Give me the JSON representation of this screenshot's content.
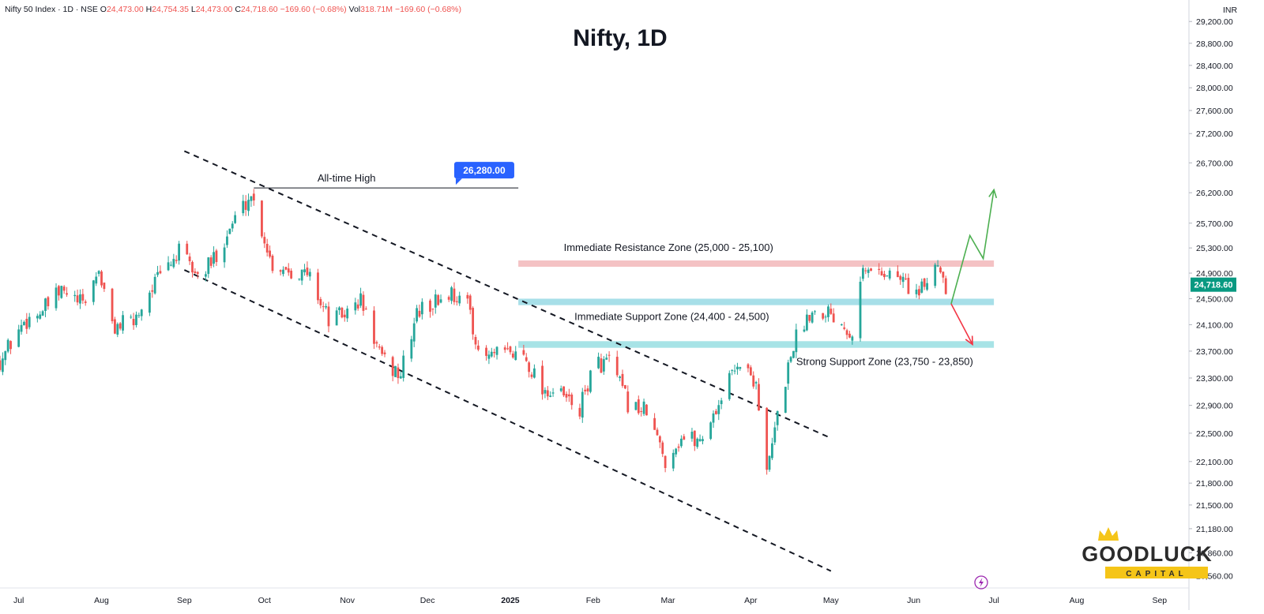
{
  "header": {
    "symbol": "Nifty 50 Index · 1D · NSE",
    "open_label": "O",
    "open": "24,473.00",
    "high_label": "H",
    "high": "24,754.35",
    "low_label": "L",
    "low": "24,473.00",
    "close_label": "C",
    "close": "24,718.60",
    "change": "−169.60 (−0.68%)",
    "vol_label": "Vol",
    "vol": "318.71M",
    "vol_change": "−169.60 (−0.68%)"
  },
  "colors": {
    "up": "#26a69a",
    "down": "#ef5350",
    "price_tag": "#089981",
    "ath_tag": "#2962ff",
    "resistance_zone": "#f4c2c4",
    "support_zone": "#a7dfe8",
    "strong_support_zone": "#a7e3e6",
    "bull_arrow": "#4caf50",
    "bear_arrow": "#f23645",
    "logo_gold": "#f5c518",
    "logo_text": "#2b2b2b",
    "bolt": "#9c27b0"
  },
  "currency": "INR",
  "current_price_tag": "24,718.60",
  "icons": {
    "bolt": "lightning-bolt-icon",
    "crown": "crown-icon"
  },
  "logo": {
    "name": "GOODLUCK",
    "sub": "CAPITAL"
  },
  "chart_data": {
    "type": "candlestick",
    "title": "Nifty, 1D",
    "y_scale": "log",
    "ylim": [
      20400,
      29600
    ],
    "y_ticks": [
      20560,
      20860,
      21180,
      21500,
      21800,
      22100,
      22500,
      22900,
      23300,
      23700,
      24100,
      24500,
      24900,
      25300,
      25700,
      26200,
      26700,
      27200,
      27600,
      28000,
      28400,
      28800,
      29200
    ],
    "y_tick_labels": [
      "20,560.00",
      "20,860.00",
      "21,180.00",
      "21,500.00",
      "21,800.00",
      "22,100.00",
      "22,500.00",
      "22,900.00",
      "23,300.00",
      "23,700.00",
      "24,100.00",
      "24,500.00",
      "24,900.00",
      "25,300.00",
      "25,700.00",
      "26,200.00",
      "26,700.00",
      "27,200.00",
      "27,600.00",
      "28,000.00",
      "28,400.00",
      "28,800.00",
      "29,200.00"
    ],
    "x_range": [
      "2024-06-24",
      "2025-09-12"
    ],
    "x_ticks": [
      {
        "date": "2024-07-01",
        "label": "Jul"
      },
      {
        "date": "2024-08-01",
        "label": "Aug"
      },
      {
        "date": "2024-09-01",
        "label": "Sep"
      },
      {
        "date": "2024-10-01",
        "label": "Oct"
      },
      {
        "date": "2024-11-01",
        "label": "Nov"
      },
      {
        "date": "2024-12-01",
        "label": "Dec"
      },
      {
        "date": "2025-01-01",
        "label": "2025"
      },
      {
        "date": "2025-02-01",
        "label": "Feb"
      },
      {
        "date": "2025-03-01",
        "label": "Mar"
      },
      {
        "date": "2025-04-01",
        "label": "Apr"
      },
      {
        "date": "2025-05-01",
        "label": "May"
      },
      {
        "date": "2025-06-01",
        "label": "Jun"
      },
      {
        "date": "2025-07-01",
        "label": "Jul"
      },
      {
        "date": "2025-08-01",
        "label": "Aug"
      },
      {
        "date": "2025-09-01",
        "label": "Sep"
      }
    ],
    "close_path": [
      [
        "2024-06-24",
        23560
      ],
      [
        "2024-07-03",
        24150
      ],
      [
        "2024-07-10",
        24320
      ],
      [
        "2024-07-17",
        24610
      ],
      [
        "2024-07-25",
        24400
      ],
      [
        "2024-07-31",
        24950
      ],
      [
        "2024-08-05",
        24060
      ],
      [
        "2024-08-13",
        24150
      ],
      [
        "2024-08-20",
        24700
      ],
      [
        "2024-08-30",
        25230
      ],
      [
        "2024-09-06",
        24850
      ],
      [
        "2024-09-11",
        25050
      ],
      [
        "2024-09-20",
        25780
      ],
      [
        "2024-09-26",
        26180
      ],
      [
        "2024-10-04",
        25020
      ],
      [
        "2024-10-10",
        24980
      ],
      [
        "2024-10-18",
        24850
      ],
      [
        "2024-10-25",
        24180
      ],
      [
        "2024-11-01",
        24280
      ],
      [
        "2024-11-06",
        24480
      ],
      [
        "2024-11-14",
        23550
      ],
      [
        "2024-11-21",
        23350
      ],
      [
        "2024-11-27",
        24280
      ],
      [
        "2024-12-04",
        24450
      ],
      [
        "2024-12-10",
        24600
      ],
      [
        "2024-12-17",
        24350
      ],
      [
        "2024-12-20",
        23600
      ],
      [
        "2024-12-30",
        23650
      ],
      [
        "2025-01-06",
        23650
      ],
      [
        "2025-01-13",
        23150
      ],
      [
        "2025-01-21",
        23020
      ],
      [
        "2025-01-27",
        22830
      ],
      [
        "2025-02-01",
        23480
      ],
      [
        "2025-02-07",
        23550
      ],
      [
        "2025-02-14",
        22930
      ],
      [
        "2025-02-21",
        22800
      ],
      [
        "2025-02-28",
        22120
      ],
      [
        "2025-03-06",
        22440
      ],
      [
        "2025-03-13",
        22400
      ],
      [
        "2025-03-19",
        22850
      ],
      [
        "2025-03-27",
        23550
      ],
      [
        "2025-04-03",
        23250
      ],
      [
        "2025-04-07",
        21900
      ],
      [
        "2025-04-11",
        22750
      ],
      [
        "2025-04-17",
        23820
      ],
      [
        "2025-04-23",
        24300
      ],
      [
        "2025-04-30",
        24330
      ],
      [
        "2025-05-09",
        24000
      ],
      [
        "2025-05-12",
        24900
      ],
      [
        "2025-05-19",
        24950
      ],
      [
        "2025-05-27",
        24820
      ],
      [
        "2025-06-03",
        24550
      ],
      [
        "2025-06-10",
        25100
      ],
      [
        "2025-06-13",
        24720
      ]
    ],
    "annotations": {
      "all_time_high": {
        "label": "All-time High",
        "value": 26280,
        "value_label": "26,280.00",
        "date": "2024-09-27",
        "line_end": "2025-01-04"
      },
      "zones": [
        {
          "label": "Immediate Resistance Zone (25,000 - 25,100)",
          "low": 25000,
          "high": 25100,
          "from": "2025-01-04",
          "to": "2025-07-01"
        },
        {
          "label": "Immediate Support Zone (24,400 - 24,500)",
          "low": 24400,
          "high": 24500,
          "from": "2025-01-04",
          "to": "2025-07-01"
        },
        {
          "label": "Strong Support Zone (23,750 - 23,850)",
          "low": 23750,
          "high": 23850,
          "from": "2025-01-04",
          "to": "2025-07-01"
        }
      ],
      "channel": {
        "upper": {
          "from": [
            "2024-09-01",
            26900
          ],
          "to": [
            "2025-05-01",
            22430
          ]
        },
        "lower": {
          "from": [
            "2024-09-01",
            24950
          ],
          "to": [
            "2025-05-01",
            20620
          ]
        }
      },
      "bull_projection": [
        [
          "2025-06-15",
          24420
        ],
        [
          "2025-06-22",
          25500
        ],
        [
          "2025-06-27",
          25130
        ],
        [
          "2025-07-01",
          26250
        ]
      ],
      "bear_projection": [
        [
          "2025-06-15",
          24420
        ],
        [
          "2025-06-23",
          23800
        ]
      ]
    }
  }
}
